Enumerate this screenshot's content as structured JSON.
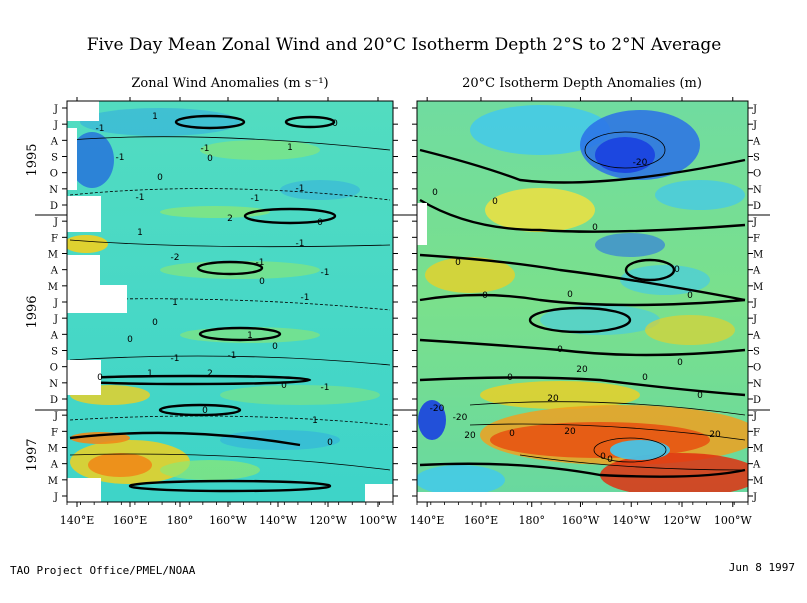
{
  "title": "Five Day Mean Zonal Wind and 20°C Isotherm Depth  2°S to 2°N Average",
  "footer": {
    "left": "TAO Project Office/PMEL/NOAA",
    "right": "Jun  8 1997"
  },
  "years": [
    "1995",
    "1996",
    "1997"
  ],
  "months": [
    "J",
    "J",
    "A",
    "S",
    "O",
    "N",
    "D",
    "J",
    "F",
    "M",
    "A",
    "M",
    "J",
    "J",
    "A",
    "S",
    "O",
    "N",
    "D",
    "J",
    "F",
    "M",
    "A",
    "M",
    "J"
  ],
  "chart_data": [
    {
      "type": "heatmap",
      "title": "Zonal Wind Anomalies (m s⁻¹)",
      "xticks": [
        "140°E",
        "160°E",
        "180°",
        "160°W",
        "140°W",
        "120°W",
        "100°W"
      ],
      "xlim": [
        "137°E",
        "97°W"
      ],
      "ylim": [
        "May 1995",
        "Jun 1997"
      ],
      "contour_labels": [
        "1",
        "-1",
        "-1",
        "0",
        "-1",
        "1",
        "0",
        "0",
        "-1",
        "2",
        "-1",
        "-1",
        "0",
        "1",
        "-1",
        "-2",
        "-1",
        "-1",
        "0",
        "-1",
        "1",
        "0",
        "1",
        "0",
        "0",
        "-1",
        "-1",
        "1",
        "0",
        "-1",
        "0",
        "2",
        "0",
        "1",
        "0"
      ],
      "colors": {
        "low": "#2255e0",
        "mid": "#3ed8c8",
        "neutral": "#8ee870",
        "high": "#f0d020",
        "extreme": "#e03010"
      }
    },
    {
      "type": "heatmap",
      "title": "20°C Isotherm Depth Anomalies (m)",
      "xticks": [
        "140°E",
        "160°E",
        "180°",
        "160°W",
        "140°W",
        "120°W",
        "100°W"
      ],
      "xlim": [
        "137°E",
        "97°W"
      ],
      "ylim": [
        "May 1995",
        "Jun 1997"
      ],
      "contour_labels": [
        "0",
        "-20",
        "0",
        "0",
        "0",
        "0",
        "0",
        "0",
        "0",
        "0",
        "0",
        "-20",
        "0",
        "0",
        "0",
        "0",
        "0",
        "0",
        "20",
        "20",
        "-20",
        "20",
        "20",
        "20"
      ],
      "colors": {
        "low": "#1a40e0",
        "mid": "#40c8f0",
        "neutral": "#90e878",
        "high": "#f0c020",
        "extreme": "#d81808"
      }
    }
  ]
}
